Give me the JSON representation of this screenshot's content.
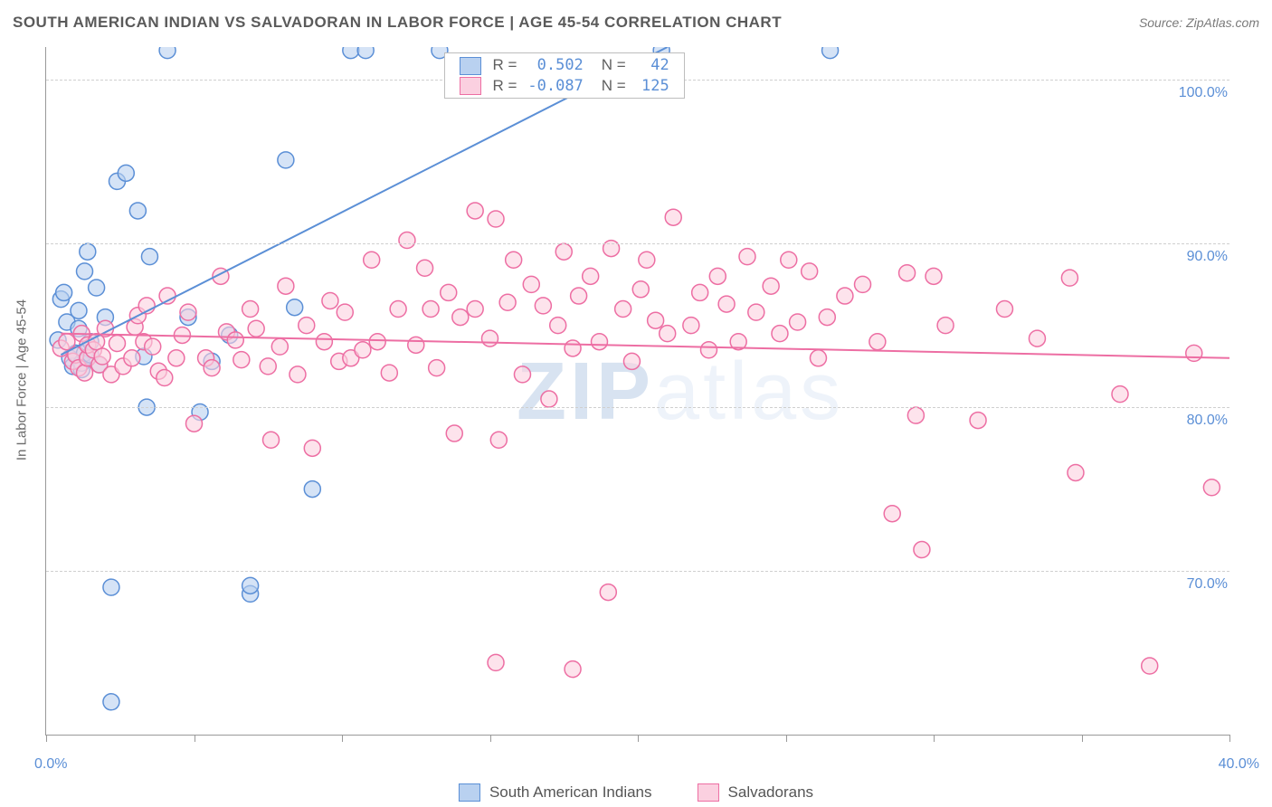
{
  "title": "SOUTH AMERICAN INDIAN VS SALVADORAN IN LABOR FORCE | AGE 45-54 CORRELATION CHART",
  "source": "Source: ZipAtlas.com",
  "watermark": "ZIPatlas",
  "y_axis_title": "In Labor Force | Age 45-54",
  "chart": {
    "type": "scatter",
    "xlim": [
      0,
      40
    ],
    "ylim": [
      60,
      102
    ],
    "x_ticks": [
      0,
      5,
      10,
      15,
      20,
      25,
      30,
      35,
      40
    ],
    "x_tick_labels": {
      "first": "0.0%",
      "last": "40.0%"
    },
    "y_ticks": [
      70,
      80,
      90,
      100
    ],
    "y_tick_labels": [
      "70.0%",
      "80.0%",
      "90.0%",
      "100.0%"
    ],
    "background_color": "#ffffff",
    "grid_color": "#cfcfcf",
    "axis_color": "#999999",
    "tick_label_color": "#5b8fd6",
    "tick_label_fontsize": 16,
    "marker_radius": 9,
    "marker_stroke_width": 1.5,
    "marker_fill_opacity": 0.25,
    "trend_line_width": 2
  },
  "series": [
    {
      "name": "South American Indians",
      "color_stroke": "#5b8fd6",
      "color_fill": "#b9d1f0",
      "R": "0.502",
      "N": "42",
      "trend": {
        "x1": 0.5,
        "y1": 83.2,
        "x2": 21.0,
        "y2": 102.0
      },
      "points": [
        [
          0.4,
          84.1
        ],
        [
          0.5,
          86.6
        ],
        [
          0.6,
          87.0
        ],
        [
          0.7,
          85.2
        ],
        [
          0.8,
          83.0
        ],
        [
          0.9,
          82.5
        ],
        [
          1.0,
          83.3
        ],
        [
          1.1,
          84.8
        ],
        [
          1.1,
          85.9
        ],
        [
          1.2,
          82.3
        ],
        [
          1.2,
          82.7
        ],
        [
          1.3,
          83.3
        ],
        [
          1.3,
          88.3
        ],
        [
          1.4,
          89.5
        ],
        [
          1.5,
          83.2
        ],
        [
          1.5,
          84.0
        ],
        [
          1.7,
          87.3
        ],
        [
          1.8,
          82.6
        ],
        [
          2.0,
          85.5
        ],
        [
          2.2,
          69.0
        ],
        [
          2.2,
          62.0
        ],
        [
          2.4,
          93.8
        ],
        [
          2.7,
          94.3
        ],
        [
          3.1,
          92.0
        ],
        [
          3.3,
          83.1
        ],
        [
          3.4,
          80.0
        ],
        [
          3.5,
          89.2
        ],
        [
          4.1,
          101.8
        ],
        [
          4.8,
          85.5
        ],
        [
          5.2,
          79.7
        ],
        [
          5.6,
          82.8
        ],
        [
          6.2,
          84.4
        ],
        [
          6.9,
          68.6
        ],
        [
          6.9,
          69.1
        ],
        [
          8.1,
          95.1
        ],
        [
          8.4,
          86.1
        ],
        [
          9.0,
          75.0
        ],
        [
          10.3,
          101.8
        ],
        [
          10.8,
          101.8
        ],
        [
          13.3,
          101.8
        ],
        [
          20.8,
          101.8
        ],
        [
          26.5,
          101.8
        ]
      ]
    },
    {
      "name": "Salvadorans",
      "color_stroke": "#ed6ea3",
      "color_fill": "#fbd0e0",
      "R": "-0.087",
      "N": "125",
      "trend": {
        "x1": 0.5,
        "y1": 84.5,
        "x2": 40.0,
        "y2": 83.0
      },
      "points": [
        [
          0.5,
          83.6
        ],
        [
          0.7,
          84.0
        ],
        [
          0.9,
          82.8
        ],
        [
          1.0,
          83.2
        ],
        [
          1.1,
          82.4
        ],
        [
          1.2,
          84.5
        ],
        [
          1.3,
          82.1
        ],
        [
          1.4,
          83.0
        ],
        [
          1.4,
          83.8
        ],
        [
          1.6,
          83.5
        ],
        [
          1.7,
          84.0
        ],
        [
          1.8,
          82.6
        ],
        [
          1.9,
          83.1
        ],
        [
          2.0,
          84.8
        ],
        [
          2.2,
          82.0
        ],
        [
          2.4,
          83.9
        ],
        [
          2.6,
          82.5
        ],
        [
          2.9,
          83.0
        ],
        [
          3.0,
          84.9
        ],
        [
          3.1,
          85.6
        ],
        [
          3.3,
          84.0
        ],
        [
          3.4,
          86.2
        ],
        [
          3.6,
          83.7
        ],
        [
          3.8,
          82.2
        ],
        [
          4.0,
          81.8
        ],
        [
          4.1,
          86.8
        ],
        [
          4.4,
          83.0
        ],
        [
          4.6,
          84.4
        ],
        [
          4.8,
          85.8
        ],
        [
          5.0,
          79.0
        ],
        [
          5.4,
          83.0
        ],
        [
          5.6,
          82.4
        ],
        [
          5.9,
          88.0
        ],
        [
          6.1,
          84.6
        ],
        [
          6.4,
          84.1
        ],
        [
          6.6,
          82.9
        ],
        [
          6.9,
          86.0
        ],
        [
          7.1,
          84.8
        ],
        [
          7.5,
          82.5
        ],
        [
          7.6,
          78.0
        ],
        [
          7.9,
          83.7
        ],
        [
          8.1,
          87.4
        ],
        [
          8.5,
          82.0
        ],
        [
          8.8,
          85.0
        ],
        [
          9.0,
          77.5
        ],
        [
          9.4,
          84.0
        ],
        [
          9.6,
          86.5
        ],
        [
          9.9,
          82.8
        ],
        [
          10.1,
          85.8
        ],
        [
          10.3,
          83.0
        ],
        [
          10.7,
          83.5
        ],
        [
          11.0,
          89.0
        ],
        [
          11.2,
          84.0
        ],
        [
          11.6,
          82.1
        ],
        [
          11.9,
          86.0
        ],
        [
          12.2,
          90.2
        ],
        [
          12.5,
          83.8
        ],
        [
          12.8,
          88.5
        ],
        [
          13.0,
          86.0
        ],
        [
          13.2,
          82.4
        ],
        [
          13.6,
          87.0
        ],
        [
          13.8,
          78.4
        ],
        [
          14.0,
          85.5
        ],
        [
          14.5,
          86.0
        ],
        [
          14.5,
          92.0
        ],
        [
          15.0,
          84.2
        ],
        [
          15.2,
          91.5
        ],
        [
          15.2,
          64.4
        ],
        [
          15.3,
          78.0
        ],
        [
          15.6,
          86.4
        ],
        [
          15.8,
          89.0
        ],
        [
          16.1,
          82.0
        ],
        [
          16.4,
          87.5
        ],
        [
          16.8,
          86.2
        ],
        [
          17.0,
          80.5
        ],
        [
          17.3,
          85.0
        ],
        [
          17.5,
          89.5
        ],
        [
          17.8,
          83.6
        ],
        [
          17.8,
          64.0
        ],
        [
          18.0,
          86.8
        ],
        [
          18.4,
          88.0
        ],
        [
          18.7,
          84.0
        ],
        [
          19.0,
          68.7
        ],
        [
          19.1,
          89.7
        ],
        [
          19.5,
          86.0
        ],
        [
          19.8,
          82.8
        ],
        [
          20.1,
          87.2
        ],
        [
          20.3,
          89.0
        ],
        [
          20.6,
          85.3
        ],
        [
          21.0,
          84.5
        ],
        [
          21.2,
          91.6
        ],
        [
          21.8,
          85.0
        ],
        [
          22.1,
          87.0
        ],
        [
          22.4,
          83.5
        ],
        [
          22.7,
          88.0
        ],
        [
          23.0,
          86.3
        ],
        [
          23.4,
          84.0
        ],
        [
          23.7,
          89.2
        ],
        [
          24.0,
          85.8
        ],
        [
          24.5,
          87.4
        ],
        [
          24.8,
          84.5
        ],
        [
          25.1,
          89.0
        ],
        [
          25.4,
          85.2
        ],
        [
          25.8,
          88.3
        ],
        [
          26.1,
          83.0
        ],
        [
          26.4,
          85.5
        ],
        [
          27.0,
          86.8
        ],
        [
          27.6,
          87.5
        ],
        [
          28.1,
          84.0
        ],
        [
          28.6,
          73.5
        ],
        [
          29.1,
          88.2
        ],
        [
          29.4,
          79.5
        ],
        [
          29.6,
          71.3
        ],
        [
          30.0,
          88.0
        ],
        [
          30.4,
          85.0
        ],
        [
          31.5,
          79.2
        ],
        [
          32.4,
          86.0
        ],
        [
          33.5,
          84.2
        ],
        [
          34.6,
          87.9
        ],
        [
          34.8,
          76.0
        ],
        [
          36.3,
          80.8
        ],
        [
          37.3,
          64.2
        ],
        [
          38.8,
          83.3
        ],
        [
          39.4,
          75.1
        ]
      ]
    }
  ],
  "bottom_legend": [
    "South American Indians",
    "Salvadorans"
  ]
}
